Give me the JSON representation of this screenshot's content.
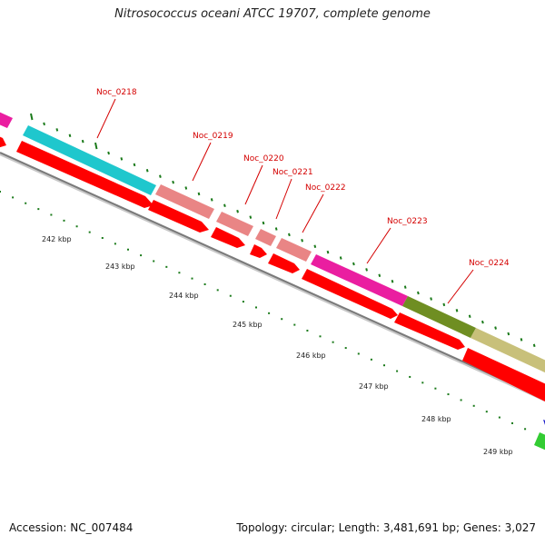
{
  "header": {
    "title": "Nitrosococcus oceani ATCC 19707, complete genome"
  },
  "footer": {
    "accession": "Accession: NC_007484",
    "topology": "Topology: circular; Length: 3,481,691 bp; Genes: 3,027"
  },
  "genes": [
    {
      "label": "Noc_0218",
      "color": "#1fc7cd"
    },
    {
      "label": "Noc_0219",
      "color": "#e98585"
    },
    {
      "label": "Noc_0220",
      "color": "#e98585"
    },
    {
      "label": "Noc_0221",
      "color": "#e98585"
    },
    {
      "label": "Noc_0222",
      "color": "#e98585"
    },
    {
      "label": "Noc_0223",
      "color": "#ea1ea0"
    },
    {
      "label": "Noc_0224",
      "color": "#6f8e22"
    }
  ],
  "kbp_labels": [
    "242 kbp",
    "243 kbp",
    "244 kbp",
    "245 kbp",
    "246 kbp",
    "247 kbp",
    "248 kbp",
    "249 kbp"
  ],
  "colors": {
    "cds": "#ff0000",
    "backbone": "#8c8c8c",
    "tick": "#1a7a1a",
    "label": "#d40000",
    "khaki_gene": "#c8c07a",
    "green_gene": "#33cc33",
    "blue_gene": "#2222cc"
  }
}
